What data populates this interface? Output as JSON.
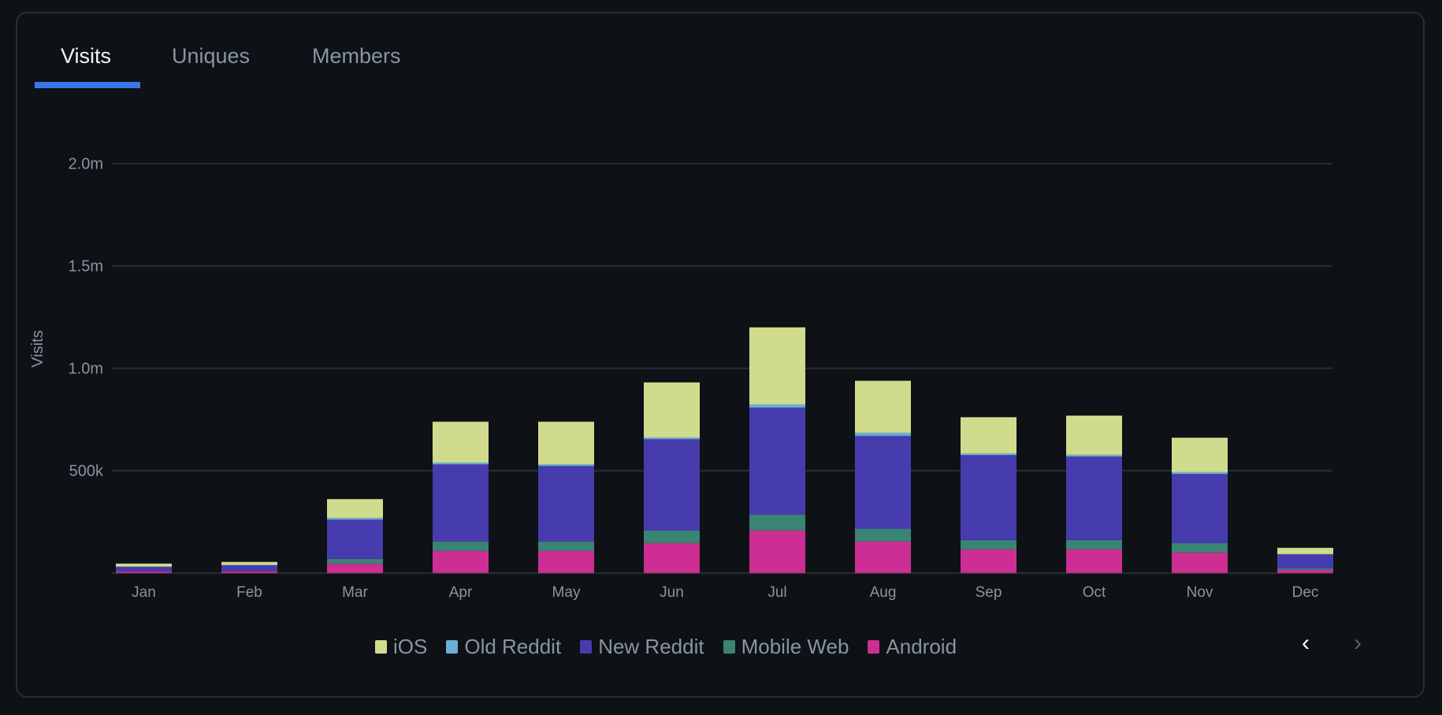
{
  "tabs": [
    {
      "label": "Visits",
      "active": true
    },
    {
      "label": "Uniques",
      "active": false
    },
    {
      "label": "Members",
      "active": false
    }
  ],
  "pager": {
    "prev_icon": "chevron-left-icon",
    "next_icon": "chevron-right-icon"
  },
  "chart_data": {
    "type": "bar",
    "stacked": true,
    "title": "",
    "xlabel": "",
    "ylabel": "Visits",
    "ylim": [
      0,
      2000000
    ],
    "yticks": [
      {
        "value": 500000,
        "label": "500k"
      },
      {
        "value": 1000000,
        "label": "1.0m"
      },
      {
        "value": 1500000,
        "label": "1.5m"
      },
      {
        "value": 2000000,
        "label": "2.0m"
      }
    ],
    "grid": true,
    "legend_position": "bottom",
    "categories": [
      "Jan",
      "Feb",
      "Mar",
      "Apr",
      "May",
      "Jun",
      "Jul",
      "Aug",
      "Sep",
      "Oct",
      "Nov",
      "Dec"
    ],
    "series": [
      {
        "name": "Android",
        "color": "#cc2e94",
        "values": [
          8000,
          8000,
          46000,
          108000,
          108000,
          146000,
          208000,
          154000,
          115000,
          115000,
          100000,
          15000
        ]
      },
      {
        "name": "Mobile Web",
        "color": "#3a8474",
        "values": [
          0,
          0,
          23000,
          46000,
          46000,
          62000,
          77000,
          62000,
          46000,
          46000,
          46000,
          8000
        ]
      },
      {
        "name": "New Reddit",
        "color": "#473cae",
        "values": [
          23000,
          31000,
          192000,
          377000,
          369000,
          446000,
          523000,
          454000,
          415000,
          408000,
          338000,
          69000
        ]
      },
      {
        "name": "Old Reddit",
        "color": "#68b0d8",
        "values": [
          0,
          0,
          8000,
          8000,
          8000,
          8000,
          15000,
          15000,
          8000,
          8000,
          8000,
          0
        ]
      },
      {
        "name": "iOS",
        "color": "#d1db8d",
        "values": [
          15000,
          15000,
          92000,
          200000,
          208000,
          269000,
          377000,
          254000,
          177000,
          192000,
          169000,
          31000
        ]
      }
    ],
    "legend_order": [
      "iOS",
      "Old Reddit",
      "New Reddit",
      "Mobile Web",
      "Android"
    ]
  }
}
